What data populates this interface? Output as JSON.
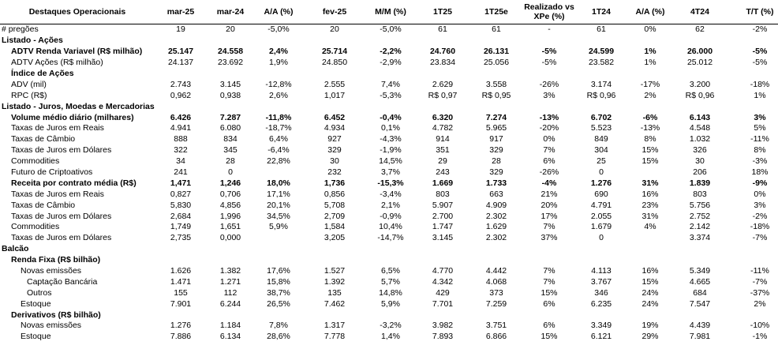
{
  "table": {
    "header": [
      "Destaques Operacionais",
      "mar-25",
      "mar-24",
      "A/A (%)",
      "fev-25",
      "M/M (%)",
      "1T25",
      "1T25e",
      "Realizado vs XPe (%)",
      "1T24",
      "A/A (%)",
      "4T24",
      "T/T (%)"
    ],
    "rows": [
      [
        "# pregões",
        "19",
        "20",
        "-5,0%",
        "20",
        "-5,0%",
        "61",
        "61",
        "-",
        "61",
        "0%",
        "62",
        "-2%"
      ],
      [
        "Listado - Ações",
        null,
        null,
        null,
        null,
        null,
        null,
        null,
        null,
        null,
        null,
        null,
        null
      ],
      [
        "ADTV Renda Variavel (R$ milhão)",
        "25.147",
        "24.558",
        "2,4%",
        "25.714",
        "-2,2%",
        "24.760",
        "26.131",
        "-5%",
        "24.599",
        "1%",
        "26.000",
        "-5%"
      ],
      [
        "ADTV Ações (R$ milhão)",
        "24.137",
        "23.692",
        "1,9%",
        "24.850",
        "-2,9%",
        "23.834",
        "25.056",
        "-5%",
        "23.582",
        "1%",
        "25.012",
        "-5%"
      ],
      [
        "Índice de Ações",
        null,
        null,
        null,
        null,
        null,
        null,
        null,
        null,
        null,
        null,
        null,
        null
      ],
      [
        "ADV (mil)",
        "2.743",
        "3.145",
        "-12,8%",
        "2.555",
        "7,4%",
        "2.629",
        "3.558",
        "-26%",
        "3.174",
        "-17%",
        "3.200",
        "-18%"
      ],
      [
        "RPC (R$)",
        "0,962",
        "0,938",
        "2,6%",
        "1,017",
        "-5,3%",
        "R$ 0,97",
        "R$ 0,95",
        "3%",
        "R$ 0,96",
        "2%",
        "R$ 0,96",
        "1%"
      ],
      [
        "Listado - Juros, Moedas e Mercadorias",
        null,
        null,
        null,
        null,
        null,
        null,
        null,
        null,
        null,
        null,
        null,
        null
      ],
      [
        "Volume médio diário (milhares)",
        "6.426",
        "7.287",
        "-11,8%",
        "6.452",
        "-0,4%",
        "6.320",
        "7.274",
        "-13%",
        "6.702",
        "-6%",
        "6.143",
        "3%"
      ],
      [
        "Taxas de Juros em Reais",
        "4.941",
        "6.080",
        "-18,7%",
        "4.934",
        "0,1%",
        "4.782",
        "5.965",
        "-20%",
        "5.523",
        "-13%",
        "4.548",
        "5%"
      ],
      [
        "Taxas de Câmbio",
        "888",
        "834",
        "6,4%",
        "927",
        "-4,3%",
        "914",
        "917",
        "0%",
        "849",
        "8%",
        "1.032",
        "-11%"
      ],
      [
        "Taxas de Juros em Dólares",
        "322",
        "345",
        "-6,4%",
        "329",
        "-1,9%",
        "351",
        "329",
        "7%",
        "304",
        "15%",
        "326",
        "8%"
      ],
      [
        "Commodities",
        "34",
        "28",
        "22,8%",
        "30",
        "14,5%",
        "29",
        "28",
        "6%",
        "25",
        "15%",
        "30",
        "-3%"
      ],
      [
        "Futuro de Criptoativos",
        "241",
        "0",
        null,
        "232",
        "3,7%",
        "243",
        "329",
        "-26%",
        "0",
        null,
        "206",
        "18%"
      ],
      [
        "Receita por contrato média (R$)",
        "1,471",
        "1,246",
        "18,0%",
        "1,736",
        "-15,3%",
        "1.669",
        "1.733",
        "-4%",
        "1.276",
        "31%",
        "1.839",
        "-9%"
      ],
      [
        "Taxas de Juros em Reais",
        "0,827",
        "0,706",
        "17,1%",
        "0,856",
        "-3,4%",
        "803",
        "663",
        "21%",
        "690",
        "16%",
        "803",
        "0%"
      ],
      [
        "Taxas de Câmbio",
        "5,830",
        "4,856",
        "20,1%",
        "5,708",
        "2,1%",
        "5.907",
        "4.909",
        "20%",
        "4.791",
        "23%",
        "5.756",
        "3%"
      ],
      [
        "Taxas de Juros em Dólares",
        "2,684",
        "1,996",
        "34,5%",
        "2,709",
        "-0,9%",
        "2.700",
        "2.302",
        "17%",
        "2.055",
        "31%",
        "2.752",
        "-2%"
      ],
      [
        "Commodities",
        "1,749",
        "1,651",
        "5,9%",
        "1,584",
        "10,4%",
        "1.747",
        "1.629",
        "7%",
        "1.679",
        "4%",
        "2.142",
        "-18%"
      ],
      [
        "Taxas de Juros em Dólares",
        "2,735",
        "0,000",
        null,
        "3,205",
        "-14,7%",
        "3.145",
        "2.302",
        "37%",
        "0",
        null,
        "3.374",
        "-7%"
      ],
      [
        "Balcão",
        null,
        null,
        null,
        null,
        null,
        null,
        null,
        null,
        null,
        null,
        null,
        null
      ],
      [
        "Renda Fixa (R$ bilhão)",
        null,
        null,
        null,
        null,
        null,
        null,
        null,
        null,
        null,
        null,
        null,
        null
      ],
      [
        "Novas emissões",
        "1.626",
        "1.382",
        "17,6%",
        "1.527",
        "6,5%",
        "4.770",
        "4.442",
        "7%",
        "4.113",
        "16%",
        "5.349",
        "-11%"
      ],
      [
        "Captação Bancária",
        "1.471",
        "1.271",
        "15,8%",
        "1.392",
        "5,7%",
        "4.342",
        "4.068",
        "7%",
        "3.767",
        "15%",
        "4.665",
        "-7%"
      ],
      [
        "Outros",
        "155",
        "112",
        "38,7%",
        "135",
        "14,8%",
        "429",
        "373",
        "15%",
        "346",
        "24%",
        "684",
        "-37%"
      ],
      [
        "Estoque",
        "7.901",
        "6.244",
        "26,5%",
        "7.462",
        "5,9%",
        "7.701",
        "7.259",
        "6%",
        "6.235",
        "24%",
        "7.547",
        "2%"
      ],
      [
        "Derivativos (R$ bilhão)",
        null,
        null,
        null,
        null,
        null,
        null,
        null,
        null,
        null,
        null,
        null,
        null
      ],
      [
        "Novas emissões",
        "1.276",
        "1.184",
        "7,8%",
        "1.317",
        "-3,2%",
        "3.982",
        "3.751",
        "6%",
        "3.349",
        "19%",
        "4.439",
        "-10%"
      ],
      [
        "Estoque",
        "7.886",
        "6.134",
        "28,6%",
        "7.778",
        "1,4%",
        "7.893",
        "6.866",
        "15%",
        "6.121",
        "29%",
        "7.981",
        "-1%"
      ]
    ]
  }
}
